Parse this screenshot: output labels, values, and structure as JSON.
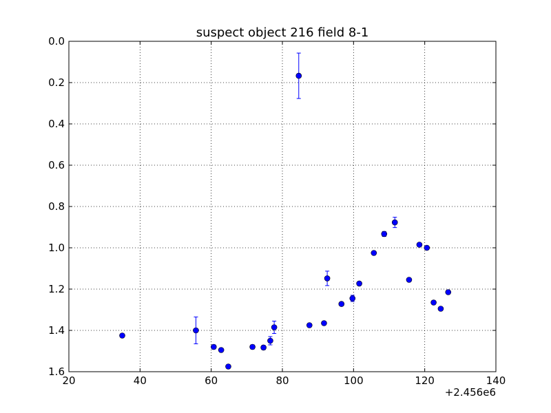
{
  "chart_data": {
    "type": "scatter",
    "title": "suspect object 216 field 8-1",
    "xlabel": "",
    "ylabel": "",
    "xlim": [
      20,
      140
    ],
    "ylim": [
      1.6,
      0.0
    ],
    "y_inverted": true,
    "grid": true,
    "grid_style": "dotted",
    "x_offset_label": "+2.456e6",
    "xticks": [
      "20",
      "40",
      "60",
      "80",
      "100",
      "120",
      "140"
    ],
    "yticks": [
      "0.0",
      "0.2",
      "0.4",
      "0.6",
      "0.8",
      "1.0",
      "1.2",
      "1.4",
      "1.6"
    ],
    "marker_color": "#0000ff",
    "series": [
      {
        "points": [
          {
            "x": 35.0,
            "y": 1.425,
            "err": 0.0
          },
          {
            "x": 55.7,
            "y": 1.4,
            "err": 0.065
          },
          {
            "x": 60.7,
            "y": 1.48,
            "err": 0.01
          },
          {
            "x": 62.8,
            "y": 1.495,
            "err": 0.008
          },
          {
            "x": 64.8,
            "y": 1.575,
            "err": 0.008
          },
          {
            "x": 71.6,
            "y": 1.48,
            "err": 0.01
          },
          {
            "x": 74.7,
            "y": 1.483,
            "err": 0.01
          },
          {
            "x": 76.6,
            "y": 1.45,
            "err": 0.02
          },
          {
            "x": 77.7,
            "y": 1.385,
            "err": 0.03
          },
          {
            "x": 84.6,
            "y": 0.167,
            "err": 0.11
          },
          {
            "x": 87.6,
            "y": 1.375,
            "err": 0.008
          },
          {
            "x": 91.7,
            "y": 1.365,
            "err": 0.008
          },
          {
            "x": 92.6,
            "y": 1.148,
            "err": 0.035
          },
          {
            "x": 96.6,
            "y": 1.272,
            "err": 0.008
          },
          {
            "x": 99.7,
            "y": 1.245,
            "err": 0.015
          },
          {
            "x": 101.6,
            "y": 1.173,
            "err": 0.008
          },
          {
            "x": 105.7,
            "y": 1.025,
            "err": 0.008
          },
          {
            "x": 108.6,
            "y": 0.933,
            "err": 0.012
          },
          {
            "x": 111.6,
            "y": 0.877,
            "err": 0.025
          },
          {
            "x": 115.6,
            "y": 1.155,
            "err": 0.008
          },
          {
            "x": 118.5,
            "y": 0.985,
            "err": 0.005
          },
          {
            "x": 120.6,
            "y": 1.0,
            "err": 0.005
          },
          {
            "x": 122.5,
            "y": 1.265,
            "err": 0.008
          },
          {
            "x": 124.5,
            "y": 1.295,
            "err": 0.005
          },
          {
            "x": 126.6,
            "y": 1.215,
            "err": 0.008
          }
        ]
      }
    ]
  }
}
